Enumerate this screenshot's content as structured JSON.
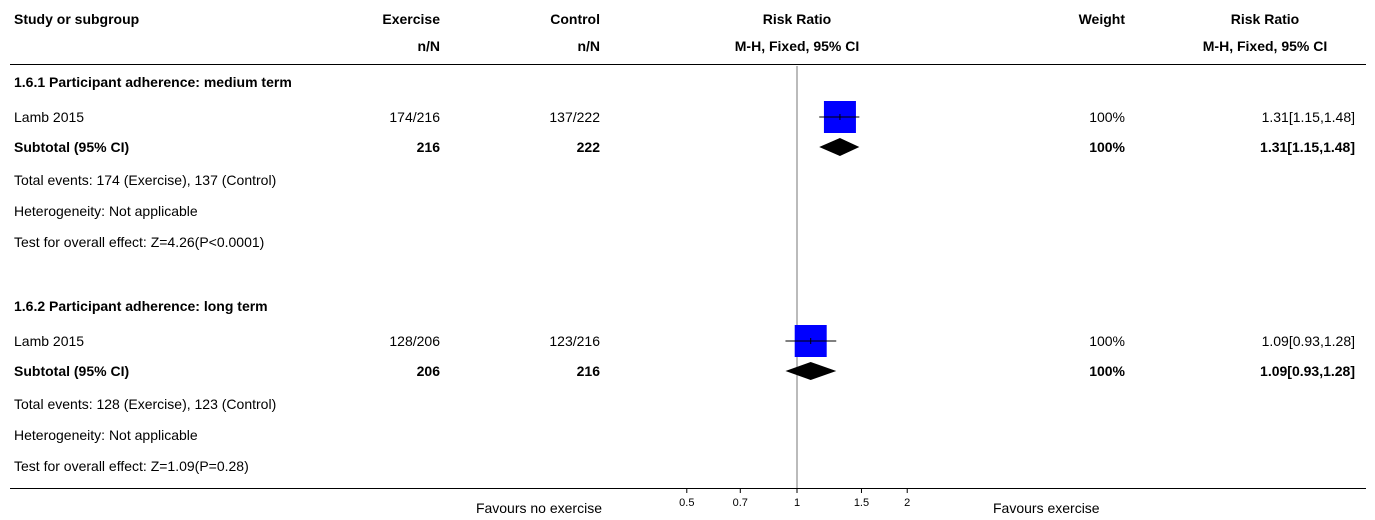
{
  "header": {
    "study": "Study or subgroup",
    "exercise": "Exercise",
    "exercise_sub": "n/N",
    "control": "Control",
    "control_sub": "n/N",
    "rr_plot": "Risk Ratio",
    "rr_plot_sub": "M-H, Fixed, 95% CI",
    "weight": "Weight",
    "rr": "Risk Ratio",
    "rr_sub": "M-H, Fixed, 95% CI"
  },
  "groups": [
    {
      "title": "1.6.1 Participant adherence: medium term",
      "study": {
        "name": "Lamb 2015",
        "exercise": "174/216",
        "control": "137/222",
        "weight": "100%",
        "rr": "1.31[1.15,1.48]"
      },
      "subtotal": {
        "label": "Subtotal (95% CI)",
        "exercise": "216",
        "control": "222",
        "weight": "100%",
        "rr": "1.31[1.15,1.48]"
      },
      "total_events": "Total events: 174 (Exercise), 137 (Control)",
      "heterogeneity": "Heterogeneity: Not applicable",
      "overall_effect": "Test for overall effect: Z=4.26(P<0.0001)"
    },
    {
      "title": "1.6.2 Participant adherence: long term",
      "study": {
        "name": "Lamb 2015",
        "exercise": "128/206",
        "control": "123/216",
        "weight": "100%",
        "rr": "1.09[0.93,1.28]"
      },
      "subtotal": {
        "label": "Subtotal (95% CI)",
        "exercise": "206",
        "control": "216",
        "weight": "100%",
        "rr": "1.09[0.93,1.28]"
      },
      "total_events": "Total events: 128 (Exercise), 123 (Control)",
      "heterogeneity": "Heterogeneity: Not applicable",
      "overall_effect": "Test for overall effect: Z=1.09(P=0.28)"
    }
  ],
  "footer": {
    "favours_left": "Favours no exercise",
    "favours_right": "Favours exercise"
  },
  "chart_data": {
    "type": "forest",
    "scale": "log",
    "xlim": [
      0.5,
      2
    ],
    "reference": 1,
    "ticks": [
      {
        "value": 0.5,
        "label": "0.5"
      },
      {
        "value": 0.7,
        "label": "0.7"
      },
      {
        "value": 1,
        "label": "1"
      },
      {
        "value": 1.5,
        "label": "1.5"
      },
      {
        "value": 2,
        "label": "2"
      }
    ],
    "colors": {
      "study_box": "#0000ff",
      "diamond": "#000000"
    },
    "rows": [
      {
        "kind": "study",
        "group": 0,
        "estimate": 1.31,
        "lower": 1.15,
        "upper": 1.48,
        "weight": 100
      },
      {
        "kind": "subtotal",
        "group": 0,
        "estimate": 1.31,
        "lower": 1.15,
        "upper": 1.48
      },
      {
        "kind": "study",
        "group": 1,
        "estimate": 1.09,
        "lower": 0.93,
        "upper": 1.28,
        "weight": 100
      },
      {
        "kind": "subtotal",
        "group": 1,
        "estimate": 1.09,
        "lower": 0.93,
        "upper": 1.28
      }
    ]
  }
}
